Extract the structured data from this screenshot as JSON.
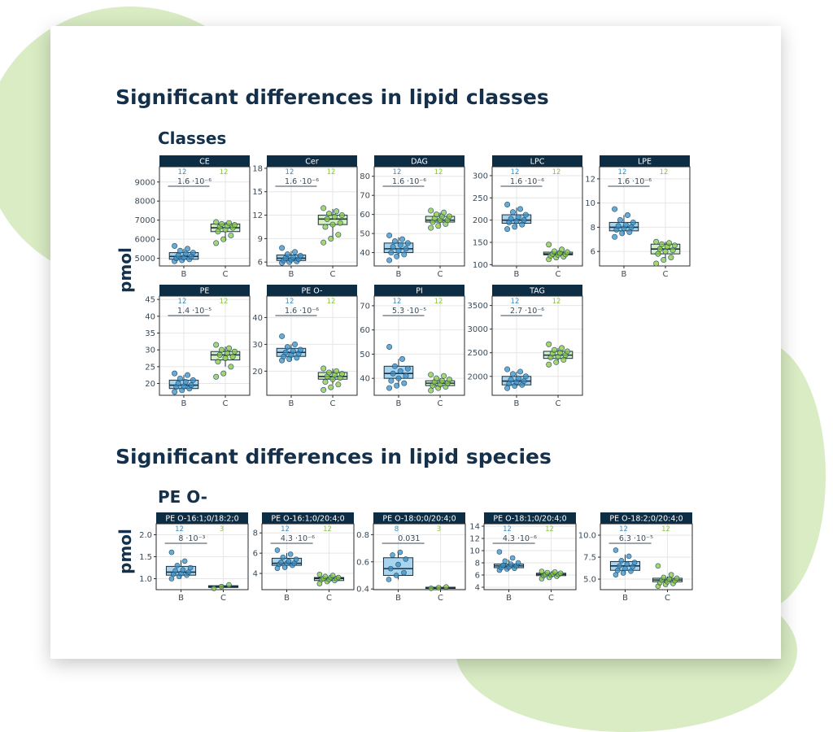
{
  "headings": {
    "classes_section": "Significant differences in lipid classes",
    "classes_subtitle": "Classes",
    "species_section": "Significant differences in lipid species",
    "species_subtitle": "PE O-",
    "ylabel": "pmol"
  },
  "colors": {
    "strip": "#0d2d45",
    "group_B_fill": "#a9d4ee",
    "group_B_point": "#3a8fc5",
    "group_C_fill": "#d7efbf",
    "group_C_point": "#8cc63f",
    "box_line": "#1a2e3c",
    "pvalue_line": "#3b4a57",
    "grid": "#e6e6e6"
  },
  "chart_data": [
    {
      "type": "box",
      "title": "CE",
      "categories": [
        "B",
        "C"
      ],
      "n": [
        "12",
        "12"
      ],
      "pvalue": "1.6 ·10⁻⁶",
      "ylim": [
        4600,
        9800
      ],
      "yticks": [
        5000,
        6000,
        7000,
        8000,
        9000
      ],
      "series": [
        {
          "name": "B",
          "box": [
            4850,
            4950,
            5100,
            5300,
            5500
          ],
          "points": [
            4850,
            4900,
            4950,
            5000,
            5050,
            5100,
            5150,
            5250,
            5300,
            5400,
            5500,
            5650
          ]
        },
        {
          "name": "C",
          "box": [
            5900,
            6400,
            6600,
            6800,
            6900
          ],
          "points": [
            5800,
            6000,
            6200,
            6400,
            6500,
            6600,
            6650,
            6700,
            6750,
            6800,
            6850,
            6900
          ]
        }
      ]
    },
    {
      "type": "box",
      "title": "Cer",
      "categories": [
        "B",
        "C"
      ],
      "n": [
        "12",
        "12"
      ],
      "pvalue": "1.6 ·10⁻⁶",
      "ylim": [
        5.5,
        18.2
      ],
      "yticks": [
        6,
        9,
        12,
        15,
        18
      ],
      "series": [
        {
          "name": "B",
          "box": [
            6.0,
            6.2,
            6.5,
            6.9,
            7.4
          ],
          "points": [
            5.9,
            6.0,
            6.1,
            6.2,
            6.3,
            6.4,
            6.5,
            6.6,
            6.8,
            7.0,
            7.3,
            7.8
          ]
        },
        {
          "name": "C",
          "box": [
            9.0,
            10.8,
            11.5,
            12.0,
            12.8
          ],
          "points": [
            8.5,
            9.0,
            9.5,
            10.5,
            10.8,
            11.0,
            11.5,
            11.8,
            12.0,
            12.2,
            12.5,
            12.9
          ]
        }
      ]
    },
    {
      "type": "box",
      "title": "DAG",
      "categories": [
        "B",
        "C"
      ],
      "n": [
        "12",
        "12"
      ],
      "pvalue": "1.6 ·10⁻⁶",
      "ylim": [
        33,
        85
      ],
      "yticks": [
        40,
        50,
        60,
        70,
        80
      ],
      "series": [
        {
          "name": "B",
          "box": [
            38,
            40,
            42,
            45,
            48
          ],
          "points": [
            36,
            38,
            39,
            40,
            41,
            42,
            43,
            44,
            45,
            46,
            47,
            49
          ]
        },
        {
          "name": "C",
          "box": [
            54,
            56,
            57,
            59,
            61
          ],
          "points": [
            53,
            54,
            55,
            56,
            57,
            57,
            58,
            59,
            59,
            60,
            61,
            62
          ]
        }
      ]
    },
    {
      "type": "box",
      "title": "LPC",
      "categories": [
        "B",
        "C"
      ],
      "n": [
        "12",
        "12"
      ],
      "pvalue": "1.6 ·10⁻⁶",
      "ylim": [
        97,
        320
      ],
      "yticks": [
        100,
        150,
        200,
        250,
        300
      ],
      "series": [
        {
          "name": "B",
          "box": [
            185,
            193,
            200,
            212,
            228
          ],
          "points": [
            180,
            185,
            190,
            195,
            198,
            200,
            203,
            207,
            212,
            218,
            225,
            235
          ]
        },
        {
          "name": "C",
          "box": [
            118,
            122,
            124,
            128,
            132
          ],
          "points": [
            112,
            116,
            118,
            120,
            122,
            123,
            124,
            126,
            128,
            130,
            134,
            145
          ]
        }
      ]
    },
    {
      "type": "box",
      "title": "LPE",
      "categories": [
        "B",
        "C"
      ],
      "n": [
        "12",
        "12"
      ],
      "pvalue": "1.6 ·10⁻⁶",
      "ylim": [
        4.8,
        13
      ],
      "yticks": [
        6,
        8,
        10,
        12
      ],
      "series": [
        {
          "name": "B",
          "box": [
            7.4,
            7.7,
            8.0,
            8.4,
            9.0
          ],
          "points": [
            7.2,
            7.5,
            7.6,
            7.8,
            7.9,
            8.0,
            8.1,
            8.2,
            8.4,
            8.6,
            9.0,
            9.5
          ]
        },
        {
          "name": "C",
          "box": [
            5.4,
            5.8,
            6.2,
            6.6,
            6.8
          ],
          "points": [
            5.0,
            5.3,
            5.5,
            5.8,
            6.0,
            6.1,
            6.2,
            6.4,
            6.5,
            6.6,
            6.7,
            6.8
          ]
        }
      ]
    },
    {
      "type": "box",
      "title": "PE",
      "categories": [
        "B",
        "C"
      ],
      "n": [
        "12",
        "12"
      ],
      "pvalue": "1.4 ·10⁻⁵",
      "ylim": [
        16.5,
        46
      ],
      "yticks": [
        20,
        25,
        30,
        35,
        40,
        45
      ],
      "series": [
        {
          "name": "B",
          "box": [
            18.0,
            18.5,
            19.5,
            21.0,
            22.5
          ],
          "points": [
            17.5,
            18.0,
            18.5,
            19.0,
            19.2,
            19.5,
            20.0,
            20.5,
            21.0,
            21.5,
            22.5,
            23.0
          ]
        },
        {
          "name": "C",
          "box": [
            25.0,
            27.0,
            28.5,
            29.5,
            31.0
          ],
          "points": [
            22.0,
            23.0,
            25.0,
            26.5,
            27.5,
            28.0,
            28.5,
            29.0,
            29.5,
            30.0,
            30.5,
            31.5
          ]
        }
      ]
    },
    {
      "type": "box",
      "title": "PE O-",
      "categories": [
        "B",
        "C"
      ],
      "n": [
        "12",
        "12"
      ],
      "pvalue": "1.6 ·10⁻⁶",
      "ylim": [
        11,
        48
      ],
      "yticks": [
        20,
        30,
        40
      ],
      "series": [
        {
          "name": "B",
          "box": [
            24,
            25.5,
            27,
            28.5,
            30
          ],
          "points": [
            24,
            24.5,
            25,
            25.5,
            26,
            26.5,
            27,
            27.5,
            28,
            29,
            30,
            33
          ]
        },
        {
          "name": "C",
          "box": [
            15,
            17,
            18,
            19.5,
            21
          ],
          "points": [
            13,
            14,
            15,
            16,
            17,
            17.5,
            18,
            18.5,
            19,
            19.5,
            20,
            21
          ]
        }
      ]
    },
    {
      "type": "box",
      "title": "PI",
      "categories": [
        "B",
        "C"
      ],
      "n": [
        "12",
        "12"
      ],
      "pvalue": "5.3 ·10⁻⁵",
      "ylim": [
        33,
        74
      ],
      "yticks": [
        40,
        50,
        60,
        70
      ],
      "series": [
        {
          "name": "B",
          "box": [
            37,
            40,
            42,
            45,
            48
          ],
          "points": [
            36,
            37,
            38,
            39,
            40,
            41,
            42,
            43,
            44,
            45,
            48,
            53
          ]
        },
        {
          "name": "C",
          "box": [
            36,
            37,
            38,
            39,
            40
          ],
          "points": [
            35,
            36,
            36.5,
            37,
            37.5,
            38,
            38.5,
            39,
            39.5,
            40,
            41,
            41.5
          ]
        }
      ]
    },
    {
      "type": "box",
      "title": "TAG",
      "categories": [
        "B",
        "C"
      ],
      "n": [
        "12",
        "12"
      ],
      "pvalue": "2.7 ·10⁻⁶",
      "ylim": [
        1600,
        3700
      ],
      "yticks": [
        2000,
        2500,
        3000,
        3500
      ],
      "series": [
        {
          "name": "B",
          "box": [
            1800,
            1820,
            1900,
            2000,
            2100
          ],
          "points": [
            1750,
            1800,
            1820,
            1850,
            1880,
            1900,
            1930,
            1960,
            2000,
            2050,
            2100,
            2150
          ]
        },
        {
          "name": "C",
          "box": [
            2300,
            2380,
            2450,
            2530,
            2600
          ],
          "points": [
            2250,
            2300,
            2350,
            2400,
            2420,
            2450,
            2480,
            2500,
            2530,
            2560,
            2600,
            2680
          ]
        }
      ]
    },
    {
      "type": "box",
      "title": "PE O-16:1;0/18:2;0",
      "categories": [
        "B",
        "C"
      ],
      "n": [
        "12",
        "3"
      ],
      "pvalue": "8 ·10⁻³",
      "ylim": [
        0.75,
        2.25
      ],
      "yticks": [
        1.0,
        1.5,
        2.0
      ],
      "series": [
        {
          "name": "B",
          "box": [
            1.0,
            1.08,
            1.15,
            1.28,
            1.42
          ],
          "points": [
            1.0,
            1.05,
            1.08,
            1.1,
            1.12,
            1.15,
            1.18,
            1.2,
            1.25,
            1.3,
            1.4,
            1.6
          ]
        },
        {
          "name": "C",
          "box": [
            0.78,
            0.8,
            0.82,
            0.84,
            0.86
          ],
          "points": [
            0.78,
            0.82,
            0.86
          ]
        }
      ]
    },
    {
      "type": "box",
      "title": "PE O-16:1;0/20:4;0",
      "categories": [
        "B",
        "C"
      ],
      "n": [
        "12",
        "12"
      ],
      "pvalue": "4.3 ·10⁻⁶",
      "ylim": [
        2.4,
        8.9
      ],
      "yticks": [
        4,
        6,
        8
      ],
      "series": [
        {
          "name": "B",
          "box": [
            4.5,
            4.8,
            5.0,
            5.5,
            6.0
          ],
          "points": [
            4.5,
            4.6,
            4.8,
            4.9,
            5.0,
            5.0,
            5.1,
            5.2,
            5.4,
            5.6,
            5.9,
            6.3
          ]
        },
        {
          "name": "C",
          "box": [
            3.1,
            3.3,
            3.5,
            3.6,
            3.8
          ],
          "points": [
            3.0,
            3.2,
            3.3,
            3.4,
            3.4,
            3.5,
            3.5,
            3.6,
            3.6,
            3.7,
            3.8,
            3.9
          ]
        }
      ]
    },
    {
      "type": "box",
      "title": "PE O-18:0;0/20:4;0",
      "categories": [
        "B",
        "C"
      ],
      "n": [
        "8",
        "3"
      ],
      "pvalue": "0.031",
      "ylim": [
        0.395,
        0.88
      ],
      "yticks": [
        0.4,
        0.6,
        0.8
      ],
      "series": [
        {
          "name": "B",
          "box": [
            0.47,
            0.5,
            0.55,
            0.63,
            0.67
          ],
          "points": [
            0.47,
            0.5,
            0.52,
            0.55,
            0.58,
            0.62,
            0.65,
            0.67
          ]
        },
        {
          "name": "C",
          "box": [
            0.405,
            0.407,
            0.41,
            0.413,
            0.415
          ],
          "points": [
            0.405,
            0.41,
            0.415
          ]
        }
      ]
    },
    {
      "type": "box",
      "title": "PE O-18:1;0/20:4;0",
      "categories": [
        "B",
        "C"
      ],
      "n": [
        "12",
        "12"
      ],
      "pvalue": "4.3 ·10⁻⁶",
      "ylim": [
        3.6,
        14.4
      ],
      "yticks": [
        4,
        6,
        8,
        10,
        12,
        14
      ],
      "series": [
        {
          "name": "B",
          "box": [
            6.8,
            7.2,
            7.5,
            7.8,
            8.5
          ],
          "points": [
            6.8,
            7.0,
            7.1,
            7.2,
            7.3,
            7.5,
            7.6,
            7.8,
            8.0,
            8.3,
            8.8,
            9.8
          ]
        },
        {
          "name": "C",
          "box": [
            5.6,
            5.9,
            6.1,
            6.3,
            6.6
          ],
          "points": [
            5.4,
            5.6,
            5.8,
            5.9,
            6.0,
            6.1,
            6.1,
            6.2,
            6.3,
            6.4,
            6.5,
            6.6
          ]
        }
      ]
    },
    {
      "type": "box",
      "title": "PE O-18:2;0/20:4;0",
      "categories": [
        "B",
        "C"
      ],
      "n": [
        "12",
        "12"
      ],
      "pvalue": "6.3 ·10⁻⁵",
      "ylim": [
        3.8,
        11.3
      ],
      "yticks": [
        5.0,
        7.5,
        10.0
      ],
      "series": [
        {
          "name": "B",
          "box": [
            5.6,
            6.0,
            6.5,
            7.0,
            7.8
          ],
          "points": [
            5.5,
            5.7,
            5.9,
            6.0,
            6.2,
            6.4,
            6.5,
            6.7,
            6.9,
            7.1,
            7.6,
            8.3
          ]
        },
        {
          "name": "C",
          "box": [
            4.4,
            4.7,
            4.9,
            5.1,
            5.3
          ],
          "points": [
            4.2,
            4.4,
            4.5,
            4.6,
            4.7,
            4.8,
            4.9,
            5.0,
            5.1,
            5.2,
            5.5,
            6.5
          ]
        }
      ]
    }
  ]
}
